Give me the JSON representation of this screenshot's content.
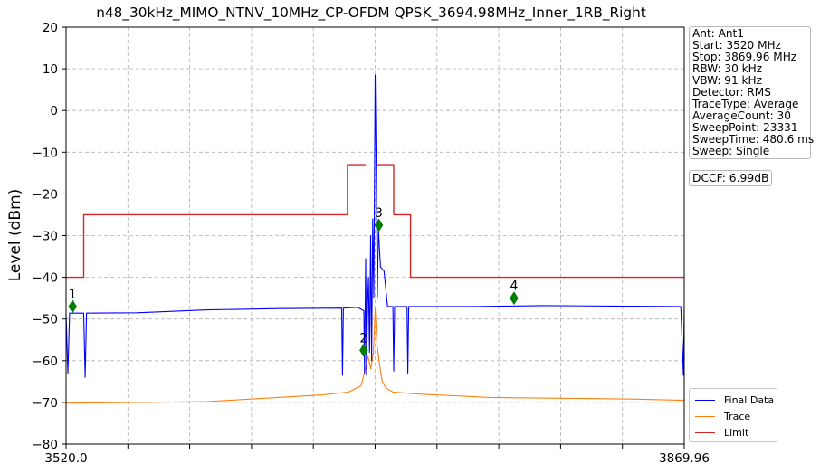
{
  "chart_data": {
    "type": "line",
    "title": "n48_30kHz_MIMO_NTNV_10MHz_CP-OFDM QPSK_3694.98MHz_Inner_1RB_Right",
    "xlabel": "",
    "ylabel": "Level (dBm)",
    "xlim": [
      3520.0,
      3869.96
    ],
    "ylim": [
      -80,
      20
    ],
    "x_tick_labels": [
      "3520.0",
      "3869.96"
    ],
    "y_ticks": [
      20,
      10,
      0,
      -10,
      -20,
      -30,
      -40,
      -50,
      -60,
      -70,
      -80
    ],
    "grid": true,
    "legend_position": "bottom-right",
    "series": [
      {
        "name": "Final Data",
        "color": "#0000ff",
        "points": [
          [
            3520.0,
            -48.7
          ],
          [
            3521.0,
            -63.0
          ],
          [
            3522.0,
            -48.6
          ],
          [
            3530.0,
            -48.6
          ],
          [
            3530.8,
            -64.0
          ],
          [
            3531.6,
            -48.6
          ],
          [
            3560.0,
            -48.5
          ],
          [
            3600.0,
            -47.8
          ],
          [
            3640.0,
            -47.5
          ],
          [
            3676.0,
            -47.4
          ],
          [
            3676.5,
            -63.5
          ],
          [
            3677.0,
            -47.4
          ],
          [
            3685.0,
            -47.2
          ],
          [
            3688.6,
            -48.0
          ],
          [
            3689.0,
            -63.0
          ],
          [
            3689.6,
            -35.5
          ],
          [
            3690.1,
            -63.5
          ],
          [
            3690.7,
            -46.0
          ],
          [
            3691.2,
            -40.0
          ],
          [
            3691.8,
            -58.0
          ],
          [
            3692.4,
            -30.0
          ],
          [
            3693.0,
            -60.0
          ],
          [
            3693.6,
            -26.0
          ],
          [
            3694.2,
            -45.0
          ],
          [
            3694.98,
            8.5
          ],
          [
            3695.6,
            -14.0
          ],
          [
            3696.2,
            -45.0
          ],
          [
            3696.8,
            -28.0
          ],
          [
            3697.4,
            -33.0
          ],
          [
            3698.0,
            -37.5
          ],
          [
            3700.0,
            -38.5
          ],
          [
            3702.0,
            -47.0
          ],
          [
            3705.0,
            -47.0
          ],
          [
            3705.5,
            -62.5
          ],
          [
            3706.0,
            -47.0
          ],
          [
            3713.0,
            -47.0
          ],
          [
            3713.5,
            -63.0
          ],
          [
            3714.0,
            -47.0
          ],
          [
            3750.0,
            -47.0
          ],
          [
            3790.0,
            -46.8
          ],
          [
            3830.0,
            -46.9
          ],
          [
            3868.0,
            -47.0
          ],
          [
            3869.5,
            -63.5
          ],
          [
            3869.96,
            -47.0
          ]
        ]
      },
      {
        "name": "Trace",
        "color": "#ff7f0e",
        "points": [
          [
            3520.0,
            -70.2
          ],
          [
            3560.0,
            -70.0
          ],
          [
            3600.0,
            -69.8
          ],
          [
            3640.0,
            -68.8
          ],
          [
            3665.0,
            -68.2
          ],
          [
            3680.0,
            -67.5
          ],
          [
            3687.0,
            -66.0
          ],
          [
            3689.5,
            -62.0
          ],
          [
            3691.0,
            -59.0
          ],
          [
            3692.5,
            -62.0
          ],
          [
            3694.0,
            -58.0
          ],
          [
            3694.98,
            -47.5
          ],
          [
            3696.0,
            -56.0
          ],
          [
            3697.5,
            -61.0
          ],
          [
            3699.0,
            -65.0
          ],
          [
            3701.0,
            -66.5
          ],
          [
            3705.0,
            -67.5
          ],
          [
            3720.0,
            -68.0
          ],
          [
            3760.0,
            -68.8
          ],
          [
            3800.0,
            -69.0
          ],
          [
            3840.0,
            -69.2
          ],
          [
            3869.96,
            -69.5
          ]
        ]
      },
      {
        "name": "Limit",
        "color": "#d62728",
        "points": [
          [
            3520.0,
            -40.0
          ],
          [
            3530.0,
            -40.0
          ],
          [
            3530.0,
            -25.0
          ],
          [
            3679.3,
            -25.0
          ],
          [
            3679.3,
            -13.0
          ],
          [
            3689.5,
            -13.0
          ],
          [
            3689.5,
            null
          ],
          [
            3695.5,
            null
          ],
          [
            3695.5,
            -13.0
          ],
          [
            3705.5,
            -13.0
          ],
          [
            3705.5,
            -25.0
          ],
          [
            3715.0,
            -25.0
          ],
          [
            3715.0,
            -40.0
          ],
          [
            3869.96,
            -40.0
          ]
        ]
      }
    ],
    "markers": [
      {
        "label": "1",
        "x": 3523.7,
        "y": -47.0
      },
      {
        "label": "2",
        "x": 3688.5,
        "y": -57.5
      },
      {
        "label": "3",
        "x": 3697.0,
        "y": -27.5
      },
      {
        "label": "4",
        "x": 3773.6,
        "y": -45.0
      }
    ]
  },
  "info": {
    "lines": [
      "Ant: Ant1",
      "Start: 3520 MHz",
      "Stop: 3869.96 MHz",
      "RBW: 30 kHz",
      "VBW: 91 kHz",
      "Detector: RMS",
      "TraceType: Average",
      "AverageCount: 30",
      "SweepPoint: 23331",
      "SweepTime: 480.6 ms",
      "Sweep: Single"
    ],
    "dccf": "DCCF: 6.99dB"
  }
}
